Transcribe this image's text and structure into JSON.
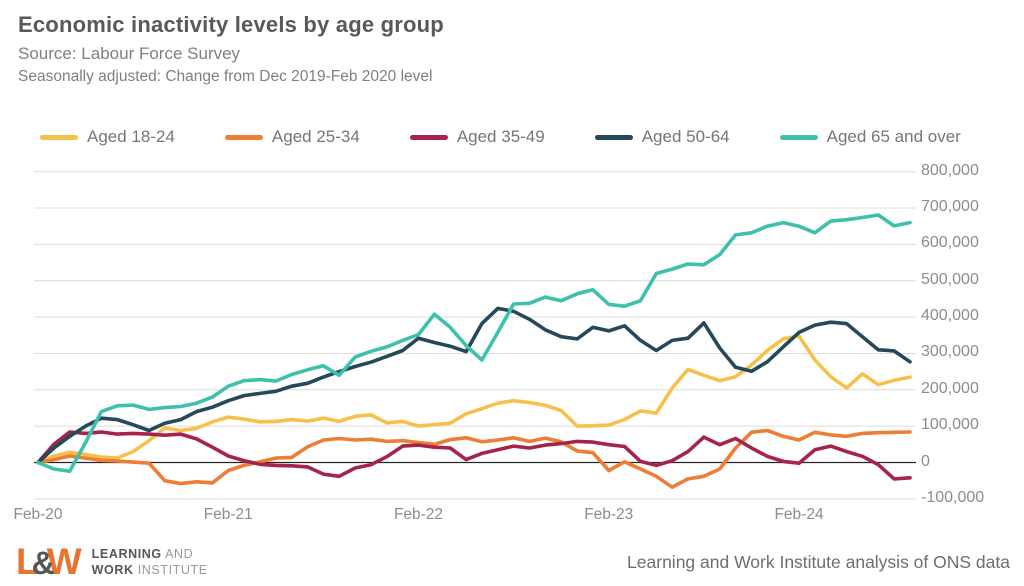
{
  "header": {
    "title": "Economic inactivity levels by age group",
    "source": "Source: Labour Force Survey",
    "subtitle": "Seasonally adjusted: Change from Dec 2019-Feb 2020 level"
  },
  "legend": [
    {
      "label": "Aged 18-24",
      "color": "#F6C14B"
    },
    {
      "label": "Aged 25-34",
      "color": "#EE7D36"
    },
    {
      "label": "Aged 35-49",
      "color": "#A7234B"
    },
    {
      "label": "Aged 50-64",
      "color": "#25495A"
    },
    {
      "label": "Aged 65 and over",
      "color": "#3EC1AC"
    }
  ],
  "chart_data": {
    "type": "line",
    "title": "Economic inactivity levels by age group",
    "xlabel": "",
    "ylabel": "",
    "grid": true,
    "y_axis_side": "right",
    "ylim": [
      -100000,
      800000
    ],
    "y_tick_values": [
      800000,
      700000,
      600000,
      500000,
      400000,
      300000,
      200000,
      100000,
      0,
      -100000
    ],
    "y_tick_labels": [
      "800,000",
      "700,000",
      "600,000",
      "500,000",
      "400,000",
      "300,000",
      "200,000",
      "100,000",
      "0",
      "-100,000"
    ],
    "n_points": 56,
    "months": [
      "Feb-20",
      "Mar-20",
      "Apr-20",
      "May-20",
      "Jun-20",
      "Jul-20",
      "Aug-20",
      "Sep-20",
      "Oct-20",
      "Nov-20",
      "Dec-20",
      "Jan-21",
      "Feb-21",
      "Mar-21",
      "Apr-21",
      "May-21",
      "Jun-21",
      "Jul-21",
      "Aug-21",
      "Sep-21",
      "Oct-21",
      "Nov-21",
      "Dec-21",
      "Jan-22",
      "Feb-22",
      "Mar-22",
      "Apr-22",
      "May-22",
      "Jun-22",
      "Jul-22",
      "Aug-22",
      "Sep-22",
      "Oct-22",
      "Nov-22",
      "Dec-22",
      "Jan-23",
      "Feb-23",
      "Mar-23",
      "Apr-23",
      "May-23",
      "Jun-23",
      "Jul-23",
      "Aug-23",
      "Sep-23",
      "Oct-23",
      "Nov-23",
      "Dec-23",
      "Jan-24",
      "Feb-24",
      "Mar-24",
      "Apr-24",
      "May-24",
      "Jun-24",
      "Jul-24",
      "Aug-24",
      "Sep-24"
    ],
    "x_tick_labels": [
      "Feb-20",
      "Feb-21",
      "Feb-22",
      "Feb-23",
      "Feb-24"
    ],
    "x_tick_indices": [
      0,
      12,
      24,
      36,
      48
    ],
    "series": [
      {
        "name": "Aged 18-24",
        "color": "#F6C14B",
        "values": [
          0,
          18000,
          28000,
          22000,
          15000,
          12000,
          30000,
          60000,
          95000,
          88000,
          94000,
          112000,
          125000,
          119000,
          112000,
          113000,
          118000,
          114000,
          122000,
          113000,
          127000,
          131000,
          109000,
          113000,
          100000,
          104000,
          108000,
          134000,
          148000,
          163000,
          170000,
          165000,
          157000,
          143000,
          100000,
          101000,
          103000,
          118000,
          142000,
          136000,
          205000,
          256000,
          240000,
          225000,
          236000,
          268000,
          308000,
          340000,
          348000,
          282000,
          236000,
          205000,
          244000,
          214000,
          226000,
          235000
        ]
      },
      {
        "name": "Aged 25-34",
        "color": "#EE7D36",
        "values": [
          0,
          8000,
          18000,
          12000,
          6000,
          4000,
          1000,
          -2000,
          -50000,
          -58000,
          -53000,
          -56000,
          -22000,
          -8000,
          2000,
          12000,
          14000,
          43000,
          62000,
          66000,
          62000,
          64000,
          58000,
          60000,
          55000,
          50000,
          63000,
          68000,
          57000,
          62000,
          68000,
          58000,
          67000,
          57000,
          32000,
          27000,
          -22000,
          2000,
          -18000,
          -38000,
          -68000,
          -45000,
          -38000,
          -18000,
          40000,
          83000,
          88000,
          72000,
          62000,
          83000,
          76000,
          72000,
          80000,
          82000,
          83000,
          84000
        ]
      },
      {
        "name": "Aged 35-49",
        "color": "#A7234B",
        "values": [
          0,
          50000,
          84000,
          80000,
          84000,
          78000,
          80000,
          78000,
          75000,
          78000,
          65000,
          42000,
          18000,
          5000,
          -5000,
          -8000,
          -9000,
          -12000,
          -32000,
          -38000,
          -15000,
          -6000,
          16000,
          45000,
          48000,
          42000,
          40000,
          8000,
          25000,
          35000,
          45000,
          40000,
          48000,
          52000,
          58000,
          56000,
          49000,
          44000,
          3000,
          -8000,
          5000,
          30000,
          70000,
          49000,
          66000,
          40000,
          17000,
          3000,
          -2000,
          35000,
          45000,
          30000,
          17000,
          -6000,
          -45000,
          -42000
        ]
      },
      {
        "name": "Aged 50-64",
        "color": "#25495A",
        "values": [
          0,
          40000,
          72000,
          100000,
          122000,
          118000,
          104000,
          88000,
          108000,
          118000,
          140000,
          152000,
          170000,
          184000,
          190000,
          196000,
          210000,
          218000,
          235000,
          250000,
          264000,
          276000,
          292000,
          308000,
          342000,
          330000,
          320000,
          305000,
          382000,
          424000,
          416000,
          394000,
          365000,
          346000,
          340000,
          372000,
          362000,
          376000,
          336000,
          308000,
          336000,
          342000,
          384000,
          315000,
          262000,
          251000,
          277000,
          318000,
          358000,
          378000,
          386000,
          382000,
          346000,
          310000,
          307000,
          277000
        ]
      },
      {
        "name": "Aged 65 and over",
        "color": "#3EC1AC",
        "values": [
          0,
          -18000,
          -24000,
          55000,
          140000,
          156000,
          158000,
          146000,
          151000,
          154000,
          163000,
          180000,
          210000,
          225000,
          228000,
          224000,
          242000,
          255000,
          266000,
          240000,
          290000,
          306000,
          318000,
          336000,
          352000,
          408000,
          372000,
          322000,
          282000,
          358000,
          436000,
          438000,
          455000,
          445000,
          464000,
          475000,
          435000,
          430000,
          445000,
          520000,
          532000,
          546000,
          544000,
          572000,
          626000,
          632000,
          650000,
          660000,
          650000,
          632000,
          664000,
          668000,
          674000,
          681000,
          651000,
          660000
        ]
      }
    ]
  },
  "style": {
    "grid_color": "#DCDCDC",
    "zero_line_color": "#262626",
    "axis_text_color": "#8C8C8C",
    "line_width": 3.6
  },
  "footer": {
    "logo": {
      "l": "L",
      "amp": "&",
      "w": "W",
      "line1_bold": "LEARNING",
      "line1_rest": " AND",
      "line2_bold": "WORK",
      "line2_rest": " INSTITUTE"
    },
    "attribution": "Learning and Work Institute analysis of ONS data"
  }
}
